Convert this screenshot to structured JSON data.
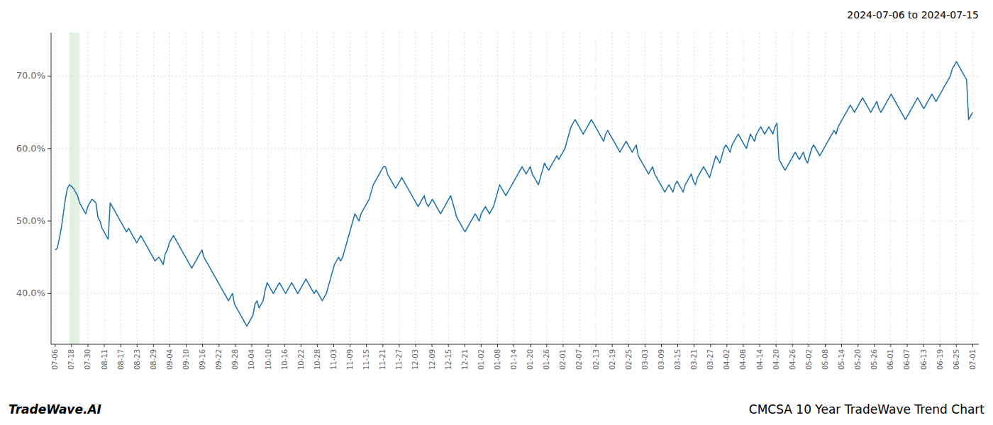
{
  "chart_data": {
    "type": "line",
    "title": "CMCSA 10 Year TradeWave Trend Chart",
    "subtitle": "2024-07-06 to 2024-07-15",
    "annotations": [
      "TradeWave.AI"
    ],
    "color": "#1a6fad",
    "grid": true,
    "xlim": [
      -2,
      453
    ],
    "ylim": [
      33.0,
      76.0
    ],
    "yticks": [
      {
        "value": 40.0,
        "label": "40.0%"
      },
      {
        "value": 50.0,
        "label": "50.0%"
      },
      {
        "value": 60.0,
        "label": "60.0%"
      },
      {
        "value": 70.0,
        "label": "70.0%"
      }
    ],
    "xticks": [
      {
        "value": 0,
        "label": "07-06"
      },
      {
        "value": 8.0357,
        "label": "07-18"
      },
      {
        "value": 16.0714,
        "label": "07-30"
      },
      {
        "value": 24.1071,
        "label": "08-11"
      },
      {
        "value": 32.1429,
        "label": "08-17"
      },
      {
        "value": 40.1786,
        "label": "08-23"
      },
      {
        "value": 48.2143,
        "label": "08-29"
      },
      {
        "value": 56.25,
        "label": "09-04"
      },
      {
        "value": 64.2857,
        "label": "09-10"
      },
      {
        "value": 72.3214,
        "label": "09-16"
      },
      {
        "value": 80.3571,
        "label": "09-22"
      },
      {
        "value": 88.3929,
        "label": "09-28"
      },
      {
        "value": 96.4286,
        "label": "10-04"
      },
      {
        "value": 104.4643,
        "label": "10-10"
      },
      {
        "value": 112.5,
        "label": "10-16"
      },
      {
        "value": 120.5357,
        "label": "10-22"
      },
      {
        "value": 128.5714,
        "label": "10-28"
      },
      {
        "value": 136.6071,
        "label": "11-03"
      },
      {
        "value": 144.6429,
        "label": "11-09"
      },
      {
        "value": 152.6786,
        "label": "11-15"
      },
      {
        "value": 160.7143,
        "label": "11-21"
      },
      {
        "value": 168.75,
        "label": "11-27"
      },
      {
        "value": 176.7857,
        "label": "12-03"
      },
      {
        "value": 184.8214,
        "label": "12-09"
      },
      {
        "value": 192.8571,
        "label": "12-15"
      },
      {
        "value": 200.8929,
        "label": "12-21"
      },
      {
        "value": 208.9286,
        "label": "01-02"
      },
      {
        "value": 216.9643,
        "label": "01-08"
      },
      {
        "value": 225,
        "label": "01-14"
      },
      {
        "value": 233.0357,
        "label": "01-20"
      },
      {
        "value": 241.0714,
        "label": "01-26"
      },
      {
        "value": 249.1071,
        "label": "02-01"
      },
      {
        "value": 257.1429,
        "label": "02-07"
      },
      {
        "value": 265.1786,
        "label": "02-13"
      },
      {
        "value": 273.2143,
        "label": "02-19"
      },
      {
        "value": 281.25,
        "label": "02-25"
      },
      {
        "value": 289.2857,
        "label": "03-03"
      },
      {
        "value": 297.3214,
        "label": "03-09"
      },
      {
        "value": 305.3571,
        "label": "03-15"
      },
      {
        "value": 313.3929,
        "label": "03-21"
      },
      {
        "value": 321.4286,
        "label": "03-27"
      },
      {
        "value": 329.4643,
        "label": "04-02"
      },
      {
        "value": 337.5,
        "label": "04-08"
      },
      {
        "value": 345.5357,
        "label": "04-14"
      },
      {
        "value": 353.5714,
        "label": "04-20"
      },
      {
        "value": 361.6071,
        "label": "04-26"
      },
      {
        "value": 369.6429,
        "label": "05-02"
      },
      {
        "value": 377.6786,
        "label": "05-08"
      },
      {
        "value": 385.7143,
        "label": "05-14"
      },
      {
        "value": 393.75,
        "label": "05-20"
      },
      {
        "value": 401.7857,
        "label": "05-26"
      },
      {
        "value": 409.8214,
        "label": "06-01"
      },
      {
        "value": 417.8571,
        "label": "06-07"
      },
      {
        "value": 425.8929,
        "label": "06-13"
      },
      {
        "value": 433.9286,
        "label": "06-19"
      },
      {
        "value": 441.9643,
        "label": "06-25"
      },
      {
        "value": 450,
        "label": "07-01"
      }
    ],
    "shade": {
      "x": [
        7,
        12
      ],
      "color": "#d6ecd6"
    },
    "x": [
      0,
      1,
      2,
      3,
      4,
      5,
      6,
      7,
      8,
      9,
      10,
      11,
      12,
      13,
      14,
      15,
      16,
      17,
      18,
      19,
      20,
      21,
      22,
      23,
      24,
      25,
      26,
      27,
      28,
      29,
      30,
      31,
      32,
      33,
      34,
      35,
      36,
      37,
      38,
      39,
      40,
      41,
      42,
      43,
      44,
      45,
      46,
      47,
      48,
      49,
      50,
      51,
      52,
      53,
      54,
      55,
      56,
      57,
      58,
      59,
      60,
      61,
      62,
      63,
      64,
      65,
      66,
      67,
      68,
      69,
      70,
      71,
      72,
      73,
      74,
      75,
      76,
      77,
      78,
      79,
      80,
      81,
      82,
      83,
      84,
      85,
      86,
      87,
      88,
      89,
      90,
      91,
      92,
      93,
      94,
      95,
      96,
      97,
      98,
      99,
      100,
      101,
      102,
      103,
      104,
      105,
      106,
      107,
      108,
      109,
      110,
      111,
      112,
      113,
      114,
      115,
      116,
      117,
      118,
      119,
      120,
      121,
      122,
      123,
      124,
      125,
      126,
      127,
      128,
      129,
      130,
      131,
      132,
      133,
      134,
      135,
      136,
      137,
      138,
      139,
      140,
      141,
      142,
      143,
      144,
      145,
      146,
      147,
      148,
      149,
      150,
      151,
      152,
      153,
      154,
      155,
      156,
      157,
      158,
      159,
      160,
      161,
      162,
      163,
      164,
      165,
      166,
      167,
      168,
      169,
      170,
      171,
      172,
      173,
      174,
      175,
      176,
      177,
      178,
      179,
      180,
      181,
      182,
      183,
      184,
      185,
      186,
      187,
      188,
      189,
      190,
      191,
      192,
      193,
      194,
      195,
      196,
      197,
      198,
      199,
      200,
      201,
      202,
      203,
      204,
      205,
      206,
      207,
      208,
      209,
      210,
      211,
      212,
      213,
      214,
      215,
      216,
      217,
      218,
      219,
      220,
      221,
      222,
      223,
      224,
      225,
      226,
      227,
      228,
      229,
      230,
      231,
      232,
      233,
      234,
      235,
      236,
      237,
      238,
      239,
      240,
      241,
      242,
      243,
      244,
      245,
      246,
      247,
      248,
      249,
      250,
      251,
      252,
      253,
      254,
      255,
      256,
      257,
      258,
      259,
      260,
      261,
      262,
      263,
      264,
      265,
      266,
      267,
      268,
      269,
      270,
      271,
      272,
      273,
      274,
      275,
      276,
      277,
      278,
      279,
      280,
      281,
      282,
      283,
      284,
      285,
      286,
      287,
      288,
      289,
      290,
      291,
      292,
      293,
      294,
      295,
      296,
      297,
      298,
      299,
      300,
      301,
      302,
      303,
      304,
      305,
      306,
      307,
      308,
      309,
      310,
      311,
      312,
      313,
      314,
      315,
      316,
      317,
      318,
      319,
      320,
      321,
      322,
      323,
      324,
      325,
      326,
      327,
      328,
      329,
      330,
      331,
      332,
      333,
      334,
      335,
      336,
      337,
      338,
      339,
      340,
      341,
      342,
      343,
      344,
      345,
      346,
      347,
      348,
      349,
      350,
      351,
      352,
      353,
      354,
      355,
      356,
      357,
      358,
      359,
      360,
      361,
      362,
      363,
      364,
      365,
      366,
      367,
      368,
      369,
      370,
      371,
      372,
      373,
      374,
      375,
      376,
      377,
      378,
      379,
      380,
      381,
      382,
      383,
      384,
      385,
      386,
      387,
      388,
      389,
      390,
      391,
      392,
      393,
      394,
      395,
      396,
      397,
      398,
      399,
      400,
      401,
      402,
      403,
      404,
      405,
      406,
      407,
      408,
      409,
      410,
      411,
      412,
      413,
      414,
      415,
      416,
      417,
      418,
      419,
      420,
      421,
      422,
      423,
      424,
      425,
      426,
      427,
      428,
      429,
      430,
      431,
      432,
      433,
      434,
      435,
      436,
      437,
      438,
      439,
      440,
      441,
      442,
      443,
      444,
      445,
      446,
      447,
      448,
      449,
      450
    ],
    "values": [
      46.0,
      46.2,
      47.5,
      49.0,
      51.0,
      53.0,
      54.5,
      55.0,
      54.8,
      54.5,
      54.0,
      53.5,
      52.5,
      52.0,
      51.5,
      51.0,
      52.0,
      52.5,
      53.0,
      52.8,
      52.5,
      50.5,
      50.0,
      49.0,
      48.5,
      48.0,
      47.5,
      52.5,
      52.0,
      51.5,
      51.0,
      50.5,
      50.0,
      49.5,
      49.0,
      48.5,
      49.0,
      48.5,
      48.0,
      47.5,
      47.0,
      47.5,
      48.0,
      47.5,
      47.0,
      46.5,
      46.0,
      45.5,
      45.0,
      44.5,
      44.8,
      45.0,
      44.5,
      44.0,
      45.5,
      46.0,
      47.0,
      47.5,
      48.0,
      47.5,
      47.0,
      46.5,
      46.0,
      45.5,
      45.0,
      44.5,
      44.0,
      43.5,
      44.0,
      44.5,
      45.0,
      45.5,
      46.0,
      45.0,
      44.5,
      44.0,
      43.5,
      43.0,
      42.5,
      42.0,
      41.5,
      41.0,
      40.5,
      40.0,
      39.5,
      39.0,
      39.5,
      40.0,
      38.5,
      38.0,
      37.5,
      37.0,
      36.5,
      36.0,
      35.5,
      36.0,
      36.5,
      37.0,
      38.5,
      39.0,
      38.0,
      38.5,
      39.0,
      40.5,
      41.5,
      41.0,
      40.5,
      40.0,
      40.5,
      41.0,
      41.5,
      41.0,
      40.5,
      40.0,
      40.5,
      41.0,
      41.5,
      41.0,
      40.5,
      40.0,
      40.5,
      41.0,
      41.5,
      42.0,
      41.5,
      41.0,
      40.5,
      40.0,
      40.5,
      40.0,
      39.5,
      39.0,
      39.5,
      40.0,
      41.0,
      42.0,
      43.0,
      44.0,
      44.5,
      45.0,
      44.5,
      45.0,
      46.0,
      47.0,
      48.0,
      49.0,
      50.0,
      51.0,
      50.5,
      50.0,
      51.0,
      51.5,
      52.0,
      52.5,
      53.0,
      54.0,
      55.0,
      55.5,
      56.0,
      56.5,
      57.0,
      57.5,
      57.5,
      56.5,
      56.0,
      55.5,
      55.0,
      54.5,
      55.0,
      55.5,
      56.0,
      55.5,
      55.0,
      54.5,
      54.0,
      53.5,
      53.0,
      52.5,
      52.0,
      52.5,
      53.0,
      53.5,
      52.5,
      52.0,
      52.5,
      53.0,
      52.5,
      52.0,
      51.5,
      51.0,
      51.5,
      52.0,
      52.5,
      53.0,
      53.5,
      52.5,
      51.5,
      50.5,
      50.0,
      49.5,
      49.0,
      48.5,
      49.0,
      49.5,
      50.0,
      50.5,
      51.0,
      50.5,
      50.0,
      51.0,
      51.5,
      52.0,
      51.5,
      51.0,
      51.5,
      52.0,
      53.0,
      54.0,
      55.0,
      54.5,
      54.0,
      53.5,
      54.0,
      54.5,
      55.0,
      55.5,
      56.0,
      56.5,
      57.0,
      57.5,
      57.0,
      56.5,
      57.0,
      57.5,
      56.5,
      56.0,
      55.5,
      55.0,
      56.0,
      57.0,
      58.0,
      57.5,
      57.0,
      57.5,
      58.0,
      58.5,
      59.0,
      58.5,
      59.0,
      59.5,
      60.0,
      61.0,
      62.0,
      63.0,
      63.5,
      64.0,
      63.5,
      63.0,
      62.5,
      62.0,
      62.5,
      63.0,
      63.5,
      64.0,
      63.5,
      63.0,
      62.5,
      62.0,
      61.5,
      61.0,
      62.0,
      62.5,
      62.0,
      61.5,
      61.0,
      60.5,
      60.0,
      59.5,
      60.0,
      60.5,
      61.0,
      60.5,
      60.0,
      59.5,
      60.0,
      60.5,
      59.0,
      58.5,
      58.0,
      57.5,
      57.0,
      56.5,
      57.0,
      57.5,
      56.5,
      56.0,
      55.5,
      55.0,
      54.5,
      54.0,
      54.5,
      55.0,
      54.5,
      54.0,
      55.0,
      55.5,
      55.0,
      54.5,
      54.0,
      55.0,
      55.5,
      56.0,
      56.5,
      55.5,
      55.0,
      56.0,
      56.5,
      57.0,
      57.5,
      57.0,
      56.5,
      56.0,
      57.0,
      58.0,
      59.0,
      58.5,
      58.0,
      59.0,
      60.0,
      60.5,
      60.0,
      59.5,
      60.5,
      61.0,
      61.5,
      62.0,
      61.5,
      61.0,
      60.5,
      60.0,
      61.0,
      62.0,
      61.5,
      61.0,
      62.0,
      62.5,
      63.0,
      62.5,
      62.0,
      62.5,
      63.0,
      62.5,
      62.0,
      63.0,
      63.5,
      58.5,
      58.0,
      57.5,
      57.0,
      57.5,
      58.0,
      58.5,
      59.0,
      59.5,
      59.0,
      58.5,
      59.0,
      59.5,
      58.5,
      58.0,
      59.0,
      60.0,
      60.5,
      60.0,
      59.5,
      59.0,
      59.5,
      60.0,
      60.5,
      61.0,
      61.5,
      62.0,
      62.5,
      62.0,
      63.0,
      63.5,
      64.0,
      64.5,
      65.0,
      65.5,
      66.0,
      65.5,
      65.0,
      65.5,
      66.0,
      66.5,
      67.0,
      66.5,
      66.0,
      65.5,
      65.0,
      65.5,
      66.0,
      66.5,
      65.5,
      65.0,
      65.5,
      66.0,
      66.5,
      67.0,
      67.5,
      67.0,
      66.5,
      66.0,
      65.5,
      65.0,
      64.5,
      64.0,
      64.5,
      65.0,
      65.5,
      66.0,
      66.5,
      67.0,
      66.5,
      66.0,
      65.5,
      66.0,
      66.5,
      67.0,
      67.5,
      67.0,
      66.5,
      67.0,
      67.5,
      68.0,
      68.5,
      69.0,
      69.5,
      70.0,
      71.0,
      71.5,
      72.0,
      71.5,
      71.0,
      70.5,
      70.0,
      69.5,
      64.0,
      64.5,
      65.0
    ]
  }
}
